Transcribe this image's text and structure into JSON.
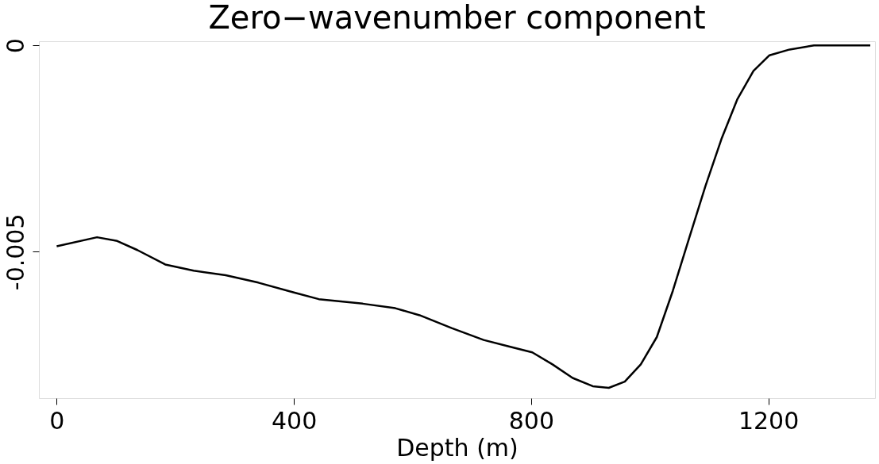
{
  "chart_data": {
    "type": "line",
    "title": "Zero−wavenumber component",
    "xlabel": "Depth (m)",
    "x": [
      0,
      68,
      102,
      136,
      183,
      231,
      285,
      340,
      400,
      442,
      516,
      571,
      612,
      666,
      720,
      761,
      802,
      836,
      870,
      904,
      931,
      958,
      985,
      1012,
      1039,
      1067,
      1094,
      1121,
      1148,
      1175,
      1202,
      1236,
      1277,
      1372
    ],
    "series": [
      {
        "color": "#000000",
        "values": [
          -0.00487,
          -0.00465,
          -0.00474,
          -0.00496,
          -0.00531,
          -0.00546,
          -0.00557,
          -0.00575,
          -0.00599,
          -0.00615,
          -0.00626,
          -0.00637,
          -0.00654,
          -0.00685,
          -0.00714,
          -0.00729,
          -0.00744,
          -0.00773,
          -0.00806,
          -0.00826,
          -0.0083,
          -0.00815,
          -0.00773,
          -0.00707,
          -0.00595,
          -0.00465,
          -0.00341,
          -0.00227,
          -0.0013,
          -0.00062,
          -0.00024,
          -0.0001,
          0.0,
          0.0
        ]
      }
    ],
    "xlim": [
      -30,
      1380
    ],
    "ylim": [
      -0.00855,
      0.0001
    ],
    "xticks": [
      0,
      400,
      800,
      1200
    ],
    "yticks": [
      0,
      -0.005
    ],
    "grid": false,
    "legend": false,
    "marker": "none",
    "line_style": "solid"
  }
}
